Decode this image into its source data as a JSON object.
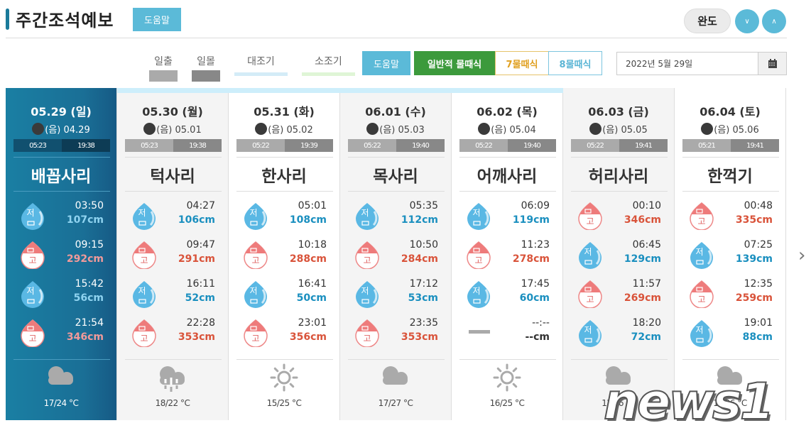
{
  "header": {
    "title": "주간조석예보",
    "help_label": "도움말",
    "region_label": "완도",
    "down_icon": "chevron-down",
    "up_icon": "chevron-up"
  },
  "legend": [
    {
      "label": "일출",
      "color": "#aaaaaa"
    },
    {
      "label": "일몰",
      "color": "#888888"
    },
    {
      "label": "대조기",
      "color": "#d4ecf7"
    },
    {
      "label": "소조기",
      "color": "#dff5d6"
    }
  ],
  "filters": {
    "help_label": "도움말",
    "general_label": "일반적 물때식",
    "seven_label": "7물때식",
    "eight_label": "8물때식"
  },
  "date_picker": {
    "value": "2022년 5월 29일",
    "icon": "calendar-icon"
  },
  "days": [
    {
      "date": "05.29 (일)",
      "lunar": "(음) 04.29",
      "sunrise": "05:23",
      "sunset": "19:38",
      "tide_name": "배꼽사리",
      "style": "today",
      "tides": [
        {
          "type": "low",
          "badge": "저",
          "time": "03:50",
          "height": "107cm"
        },
        {
          "type": "high",
          "badge": "고",
          "time": "09:15",
          "height": "292cm"
        },
        {
          "type": "low",
          "badge": "저",
          "time": "15:42",
          "height": "56cm"
        },
        {
          "type": "high",
          "badge": "고",
          "time": "21:54",
          "height": "346cm"
        }
      ],
      "weather": "cloudy",
      "temp": "17/24 °C"
    },
    {
      "date": "05.30 (월)",
      "lunar": "(음) 05.01",
      "sunrise": "05:23",
      "sunset": "19:38",
      "tide_name": "턱사리",
      "style": "gray",
      "tides": [
        {
          "type": "low",
          "badge": "저",
          "time": "04:27",
          "height": "106cm"
        },
        {
          "type": "high",
          "badge": "고",
          "time": "09:47",
          "height": "291cm"
        },
        {
          "type": "low",
          "badge": "저",
          "time": "16:11",
          "height": "52cm"
        },
        {
          "type": "high",
          "badge": "고",
          "time": "22:28",
          "height": "353cm"
        }
      ],
      "weather": "rain",
      "temp": "18/22 °C"
    },
    {
      "date": "05.31 (화)",
      "lunar": "(음) 05.02",
      "sunrise": "05:22",
      "sunset": "19:39",
      "tide_name": "한사리",
      "style": "white",
      "tides": [
        {
          "type": "low",
          "badge": "저",
          "time": "05:01",
          "height": "108cm"
        },
        {
          "type": "high",
          "badge": "고",
          "time": "10:18",
          "height": "288cm"
        },
        {
          "type": "low",
          "badge": "저",
          "time": "16:41",
          "height": "50cm"
        },
        {
          "type": "high",
          "badge": "고",
          "time": "23:01",
          "height": "356cm"
        }
      ],
      "weather": "sunny",
      "temp": "15/25 °C"
    },
    {
      "date": "06.01 (수)",
      "lunar": "(음) 05.03",
      "sunrise": "05:22",
      "sunset": "19:40",
      "tide_name": "목사리",
      "style": "gray",
      "tides": [
        {
          "type": "low",
          "badge": "저",
          "time": "05:35",
          "height": "112cm"
        },
        {
          "type": "high",
          "badge": "고",
          "time": "10:50",
          "height": "284cm"
        },
        {
          "type": "low",
          "badge": "저",
          "time": "17:12",
          "height": "53cm"
        },
        {
          "type": "high",
          "badge": "고",
          "time": "23:35",
          "height": "353cm"
        }
      ],
      "weather": "cloudy",
      "temp": "17/27 °C"
    },
    {
      "date": "06.02 (목)",
      "lunar": "(음) 05.04",
      "sunrise": "05:22",
      "sunset": "19:40",
      "tide_name": "어깨사리",
      "style": "white",
      "tides": [
        {
          "type": "low",
          "badge": "저",
          "time": "06:09",
          "height": "119cm"
        },
        {
          "type": "high",
          "badge": "고",
          "time": "11:23",
          "height": "278cm"
        },
        {
          "type": "low",
          "badge": "저",
          "time": "17:45",
          "height": "60cm"
        },
        {
          "type": "none",
          "badge": "",
          "time": "--:--",
          "height": "--cm"
        }
      ],
      "weather": "sunny",
      "temp": "16/25 °C"
    },
    {
      "date": "06.03 (금)",
      "lunar": "(음) 05.05",
      "sunrise": "05:22",
      "sunset": "19:41",
      "tide_name": "허리사리",
      "style": "gray",
      "tides": [
        {
          "type": "high",
          "badge": "고",
          "time": "00:10",
          "height": "346cm"
        },
        {
          "type": "low",
          "badge": "저",
          "time": "06:45",
          "height": "129cm"
        },
        {
          "type": "high",
          "badge": "고",
          "time": "11:57",
          "height": "269cm"
        },
        {
          "type": "low",
          "badge": "저",
          "time": "18:20",
          "height": "72cm"
        }
      ],
      "weather": "cloudy",
      "temp": "1?/26 °C"
    },
    {
      "date": "06.04 (토)",
      "lunar": "(음) 05.06",
      "sunrise": "05:21",
      "sunset": "19:41",
      "tide_name": "한꺽기",
      "style": "white",
      "tides": [
        {
          "type": "high",
          "badge": "고",
          "time": "00:48",
          "height": "335cm"
        },
        {
          "type": "low",
          "badge": "저",
          "time": "07:25",
          "height": "139cm"
        },
        {
          "type": "high",
          "badge": "고",
          "time": "12:35",
          "height": "259cm"
        },
        {
          "type": "low",
          "badge": "저",
          "time": "19:01",
          "height": "88cm"
        }
      ],
      "weather": "cloudy",
      "temp": "1?/26 °C"
    }
  ],
  "nav": {
    "next_icon": "chevron-right"
  },
  "watermark": "news1"
}
